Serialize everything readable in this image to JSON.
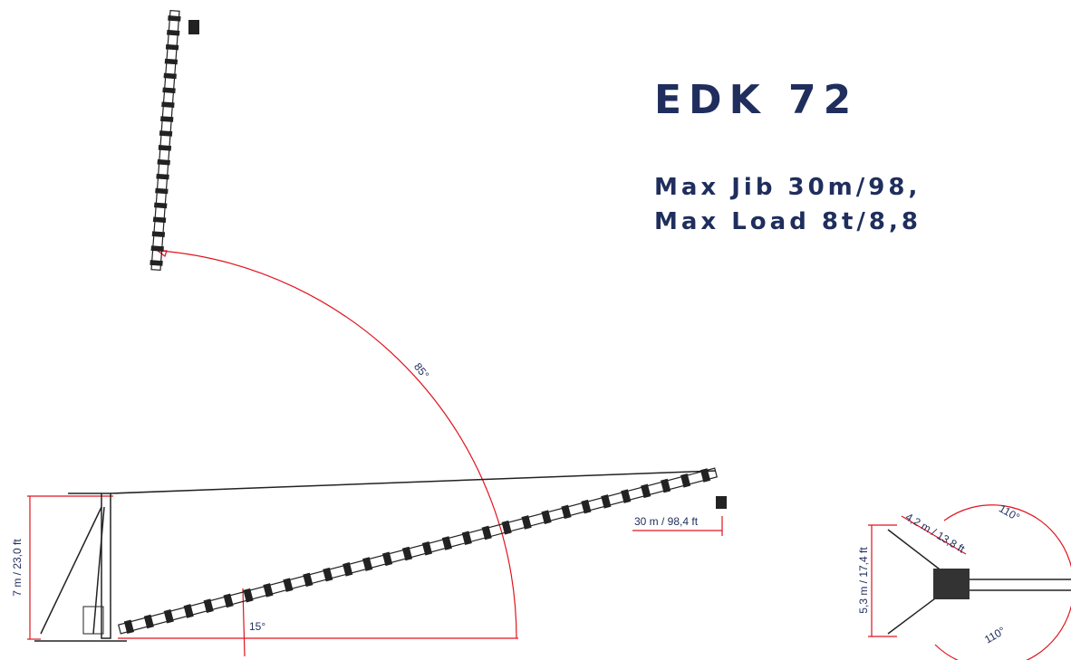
{
  "header": {
    "title": "EDK 72",
    "lines": [
      "Max Jib 30m/98,",
      "Max Load 8t/8,8"
    ]
  },
  "side_view": {
    "luffing_angle": "85°",
    "base_angle": "15°",
    "height": "7 m / 23,0 ft",
    "jib_length": "30 m / 98,4 ft"
  },
  "top_view": {
    "outrigger_length": "4,2 m / 13,8 ft",
    "width": "5,3 m / 17,4 ft",
    "slew_top": "110°",
    "slew_bottom": "110°"
  }
}
